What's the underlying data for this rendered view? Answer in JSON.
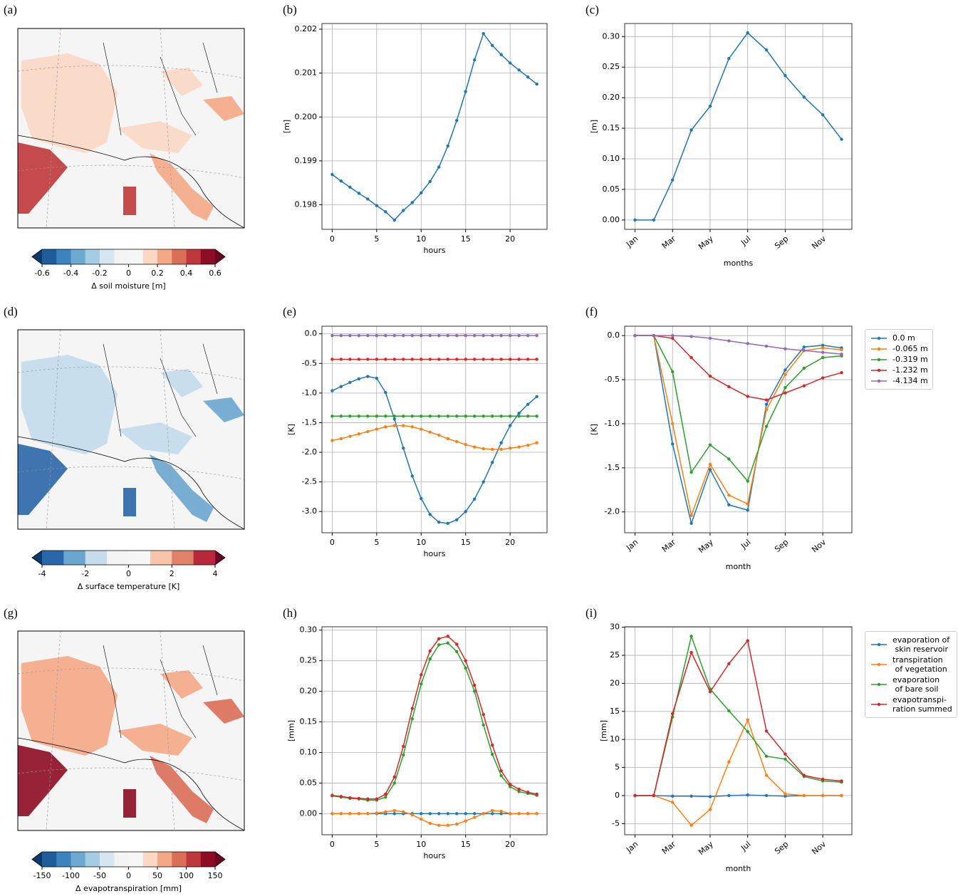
{
  "chart_data": [
    {
      "type": "map",
      "title": "(a)",
      "xlabel": "Δ soil moisture [m]",
      "xlim": [
        -0.6,
        0.6
      ],
      "xticks": [
        -0.6,
        -0.4,
        -0.2,
        0,
        0.2,
        0.4,
        0.6
      ],
      "colors": [
        "#1f5c9c",
        "#3b84bf",
        "#6daad2",
        "#a6cde3",
        "#d4e6f1",
        "#f4f4f4",
        "#f7f7f7",
        "#fbd7c4",
        "#f4a886",
        "#dc6e57",
        "#c0373a",
        "#8e0c25"
      ],
      "under_color": "#0b3a6e",
      "over_color": "#6b0120"
    },
    {
      "type": "line",
      "title": "(b)",
      "xlabel": "hours",
      "ylabel": "[m]",
      "grid": true,
      "x": [
        0,
        1,
        2,
        3,
        4,
        5,
        6,
        7,
        8,
        9,
        10,
        11,
        12,
        13,
        14,
        15,
        16,
        17,
        18,
        19,
        20,
        21,
        22,
        23
      ],
      "values": [
        0.19869,
        0.19854,
        0.1984,
        0.19826,
        0.19813,
        0.19798,
        0.19784,
        0.19765,
        0.19787,
        0.19805,
        0.19827,
        0.19853,
        0.19886,
        0.19934,
        0.19992,
        0.20058,
        0.2013,
        0.2019,
        0.20163,
        0.20142,
        0.20123,
        0.20107,
        0.20091,
        0.20075
      ],
      "color": "#1f77b4",
      "xlim": [
        -1.15,
        24.15
      ],
      "xticks": [
        0,
        5,
        10,
        15,
        20
      ],
      "ylim": [
        0.19744,
        0.20213
      ],
      "yticks": [
        0.198,
        0.199,
        {
          "value": 0.2,
          "label": "0.200"
        },
        0.201,
        0.202
      ]
    },
    {
      "type": "line",
      "title": "(c)",
      "xlabel": "months",
      "ylabel": "[m]",
      "grid": true,
      "categories": [
        "Jan",
        null,
        "Mar",
        null,
        "May",
        null,
        "Jul",
        null,
        "Sep",
        null,
        "Nov",
        null
      ],
      "values": [
        0,
        0,
        0.0655,
        0.147,
        0.186,
        0.264,
        0.306,
        0.278,
        0.236,
        0.201,
        0.172,
        0.132
      ],
      "color": "#1f77b4",
      "ylim": [
        -0.0153,
        0.3213
      ],
      "yticks": [
        {
          "value": 0,
          "label": "0.00"
        },
        0.05,
        {
          "value": 0.1,
          "label": "0.10"
        },
        0.15,
        {
          "value": 0.2,
          "label": "0.20"
        },
        0.25,
        {
          "value": 0.3,
          "label": "0.30"
        }
      ]
    },
    {
      "type": "map",
      "title": "(d)",
      "xlabel": "Δ surface temperature [K]",
      "xlim": [
        -4,
        4
      ],
      "xticks": [
        -4,
        -2,
        0,
        2,
        4
      ],
      "colors": [
        "#2a67aa",
        "#6aa6d0",
        "#c4dcec",
        "#f4f4f4",
        "#f7f7f7",
        "#f9c4aa",
        "#e0816a",
        "#b9283a"
      ],
      "under_color": "#0b3a6e",
      "over_color": "#6b0120"
    },
    {
      "type": "line",
      "title": "(e)",
      "xlabel": "hours",
      "ylabel": "[K]",
      "grid": true,
      "x": [
        0,
        1,
        2,
        3,
        4,
        5,
        6,
        7,
        8,
        9,
        10,
        11,
        12,
        13,
        14,
        15,
        16,
        17,
        18,
        19,
        20,
        21,
        22,
        23
      ],
      "series": [
        {
          "color": "#1f77b4",
          "values": [
            -0.96,
            -0.89,
            -0.82,
            -0.76,
            -0.72,
            -0.75,
            -0.99,
            -1.44,
            -1.93,
            -2.4,
            -2.78,
            -3.05,
            -3.18,
            -3.2,
            -3.14,
            -3,
            -2.79,
            -2.5,
            -2.17,
            -1.84,
            -1.55,
            -1.34,
            -1.19,
            -1.06
          ]
        },
        {
          "color": "#ff7f0e",
          "values": [
            -1.8,
            -1.77,
            -1.73,
            -1.69,
            -1.65,
            -1.61,
            -1.57,
            -1.55,
            -1.55,
            -1.57,
            -1.61,
            -1.66,
            -1.71,
            -1.77,
            -1.82,
            -1.87,
            -1.91,
            -1.94,
            -1.95,
            -1.95,
            -1.93,
            -1.91,
            -1.88,
            -1.84
          ]
        },
        {
          "color": "#2ca02c",
          "values": [
            -1.39,
            -1.39,
            -1.39,
            -1.39,
            -1.39,
            -1.39,
            -1.39,
            -1.39,
            -1.39,
            -1.39,
            -1.39,
            -1.39,
            -1.39,
            -1.39,
            -1.39,
            -1.39,
            -1.39,
            -1.39,
            -1.39,
            -1.39,
            -1.39,
            -1.39,
            -1.39,
            -1.39
          ]
        },
        {
          "color": "#d62728",
          "values": [
            -0.43,
            -0.43,
            -0.43,
            -0.43,
            -0.43,
            -0.43,
            -0.43,
            -0.43,
            -0.43,
            -0.43,
            -0.43,
            -0.43,
            -0.43,
            -0.43,
            -0.43,
            -0.43,
            -0.43,
            -0.43,
            -0.43,
            -0.43,
            -0.43,
            -0.43,
            -0.43,
            -0.43
          ]
        },
        {
          "color": "#9467bd",
          "values": [
            -0.03,
            -0.03,
            -0.03,
            -0.03,
            -0.03,
            -0.03,
            -0.03,
            -0.03,
            -0.03,
            -0.03,
            -0.03,
            -0.03,
            -0.03,
            -0.03,
            -0.03,
            -0.03,
            -0.03,
            -0.03,
            -0.03,
            -0.03,
            -0.03,
            -0.03,
            -0.03,
            -0.03
          ]
        }
      ],
      "xlim": [
        -1.15,
        24.15
      ],
      "xticks": [
        0,
        5,
        10,
        15,
        20
      ],
      "ylim": [
        -3.3585,
        0.1285
      ],
      "yticks": [
        {
          "value": -3,
          "label": "-3.0"
        },
        -2.5,
        {
          "value": -2,
          "label": "-2.0"
        },
        -1.5,
        {
          "value": -1,
          "label": "-1.0"
        },
        -0.5,
        {
          "value": 0,
          "label": "0.0"
        }
      ]
    },
    {
      "type": "line",
      "title": "(f)",
      "xlabel": "month",
      "ylabel": "[K]",
      "grid": true,
      "categories": [
        "Jan",
        null,
        "Mar",
        null,
        "May",
        null,
        "Jul",
        null,
        "Sep",
        null,
        "Nov",
        null
      ],
      "series": [
        {
          "name": "0.0 m",
          "color": "#1f77b4",
          "values": [
            0,
            0,
            -1.23,
            -2.13,
            -1.52,
            -1.92,
            -1.98,
            -0.78,
            -0.39,
            -0.13,
            -0.11,
            -0.14
          ]
        },
        {
          "name": "-0.065 m",
          "color": "#ff7f0e",
          "values": [
            0,
            0,
            -1,
            -2.04,
            -1.46,
            -1.81,
            -1.91,
            -0.84,
            -0.44,
            -0.17,
            -0.14,
            -0.16
          ]
        },
        {
          "name": "-0.319 m",
          "color": "#2ca02c",
          "values": [
            0,
            0,
            -0.41,
            -1.55,
            -1.24,
            -1.4,
            -1.65,
            -1.03,
            -0.59,
            -0.37,
            -0.25,
            -0.23
          ]
        },
        {
          "name": "-1.232 m",
          "color": "#d62728",
          "values": [
            0,
            0,
            -0.03,
            -0.25,
            -0.46,
            -0.58,
            -0.69,
            -0.73,
            -0.65,
            -0.57,
            -0.48,
            -0.42
          ]
        },
        {
          "name": "-4.134 m",
          "color": "#9467bd",
          "values": [
            0,
            0,
            0,
            -0.01,
            -0.03,
            -0.06,
            -0.09,
            -0.12,
            -0.15,
            -0.17,
            -0.19,
            -0.21
          ]
        }
      ],
      "ylim": [
        -2.2365,
        0.1065
      ],
      "yticks": [
        {
          "value": -2,
          "label": "-2.0"
        },
        -1.5,
        {
          "value": -1,
          "label": "-1.0"
        },
        -0.5,
        {
          "value": 0,
          "label": "0.0"
        }
      ],
      "legend": "outside right"
    },
    {
      "type": "map",
      "title": "(g)",
      "xlabel": "Δ evapotranspiration [mm]",
      "xlim": [
        -150,
        150
      ],
      "xticks": [
        -150,
        -100,
        -50,
        0,
        50,
        100,
        150
      ],
      "colors": [
        "#1f5c9c",
        "#3b84bf",
        "#6daad2",
        "#a6cde3",
        "#d4e6f1",
        "#f4f4f4",
        "#f7f7f7",
        "#fbd7c4",
        "#f4a886",
        "#dc6e57",
        "#c0373a",
        "#8e0c25"
      ],
      "under_color": "#0b3a6e",
      "over_color": "#6b0120"
    },
    {
      "type": "line",
      "title": "(h)",
      "xlabel": "hours",
      "ylabel": "[mm]",
      "grid": true,
      "x": [
        0,
        1,
        2,
        3,
        4,
        5,
        6,
        7,
        8,
        9,
        10,
        11,
        12,
        13,
        14,
        15,
        16,
        17,
        18,
        19,
        20,
        21,
        22,
        23
      ],
      "series": [
        {
          "color": "#1f77b4",
          "values": [
            0,
            0,
            0,
            0,
            0,
            0,
            0,
            0,
            0,
            0,
            0,
            0,
            0,
            0,
            0,
            0,
            0,
            0,
            0,
            0,
            0,
            0,
            0,
            0
          ]
        },
        {
          "color": "#ff7f0e",
          "values": [
            0,
            0,
            0,
            0,
            0,
            0.001,
            0.003,
            0.005,
            0.003,
            -0.002,
            -0.009,
            -0.016,
            -0.019,
            -0.019,
            -0.017,
            -0.012,
            -0.006,
            0,
            0.005,
            0.004,
            0,
            0,
            0,
            0
          ]
        },
        {
          "color": "#2ca02c",
          "values": [
            0.029,
            0.027,
            0.025,
            0.024,
            0.022,
            0.022,
            0.027,
            0.05,
            0.096,
            0.155,
            0.212,
            0.253,
            0.276,
            0.279,
            0.265,
            0.238,
            0.2,
            0.145,
            0.097,
            0.062,
            0.044,
            0.036,
            0.033,
            0.03
          ]
        },
        {
          "color": "#d62728",
          "values": [
            0.03,
            0.028,
            0.026,
            0.025,
            0.024,
            0.024,
            0.032,
            0.06,
            0.11,
            0.172,
            0.227,
            0.266,
            0.286,
            0.29,
            0.277,
            0.25,
            0.21,
            0.162,
            0.112,
            0.07,
            0.048,
            0.04,
            0.035,
            0.032
          ]
        }
      ],
      "xlim": [
        -1.15,
        24.15
      ],
      "xticks": [
        0,
        5,
        10,
        15,
        20
      ],
      "ylim": [
        -0.0345,
        0.3055
      ],
      "yticks": [
        {
          "value": 0,
          "label": "0.00"
        },
        0.05,
        {
          "value": 0.1,
          "label": "0.10"
        },
        0.15,
        {
          "value": 0.2,
          "label": "0.20"
        },
        0.25,
        {
          "value": 0.3,
          "label": "0.30"
        }
      ]
    },
    {
      "type": "line",
      "title": "(i)",
      "xlabel": "month",
      "ylabel": "[mm]",
      "grid": true,
      "categories": [
        "Jan",
        null,
        "Mar",
        null,
        "May",
        null,
        "Jul",
        null,
        "Sep",
        null,
        "Nov",
        null
      ],
      "series": [
        {
          "name": "evaporation of\n skin reservoir",
          "color": "#1f77b4",
          "values": [
            0,
            0,
            -0.1,
            -0.1,
            -0.2,
            0,
            0.1,
            0,
            -0.1,
            0,
            0,
            0
          ]
        },
        {
          "name": "transpiration\n of vegetation",
          "color": "#ff7f0e",
          "values": [
            0,
            0,
            -1.2,
            -5.3,
            -2.5,
            6,
            13.5,
            3.6,
            0.3,
            0,
            0,
            0
          ]
        },
        {
          "name": "evaporation\n of bare soil",
          "color": "#2ca02c",
          "values": [
            0,
            0,
            14,
            28.4,
            19,
            15.1,
            11.4,
            7,
            6.5,
            3.4,
            2.6,
            2.4
          ]
        },
        {
          "name": "evapotranspi-\nration summed",
          "color": "#d62728",
          "values": [
            0,
            0,
            14.6,
            25.5,
            18.5,
            23.5,
            27.6,
            11.5,
            7.4,
            3.6,
            2.9,
            2.6
          ]
        }
      ],
      "ylim": [
        -6.985,
        30.085
      ],
      "yticks": [
        -5,
        0,
        5,
        10,
        15,
        20,
        25,
        30
      ],
      "legend": "outside right"
    }
  ]
}
